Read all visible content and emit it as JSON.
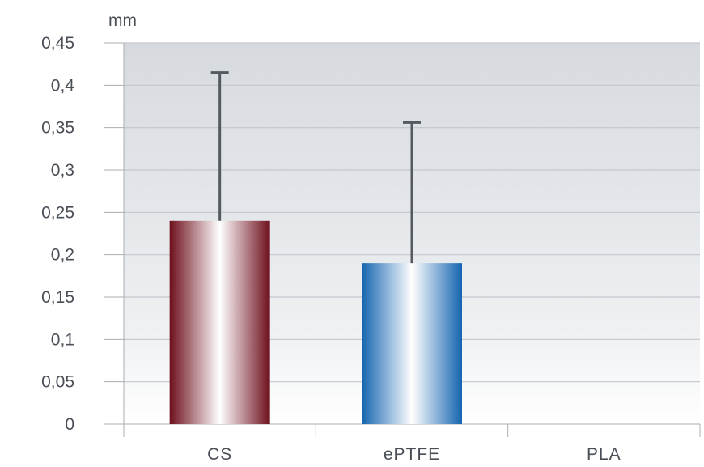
{
  "chart_data": {
    "type": "bar",
    "unit": "mm",
    "categories": [
      "CS",
      "ePTFE",
      "PLA"
    ],
    "values": [
      0.24,
      0.19,
      0
    ],
    "error_upper": [
      0.415,
      0.356,
      null
    ],
    "ylim": [
      0,
      0.45
    ],
    "yticks": [
      0,
      0.05,
      0.1,
      0.15,
      0.2,
      0.25,
      0.3,
      0.35,
      0.4,
      0.45
    ],
    "ytick_labels": [
      "0",
      "0,05",
      "0,1",
      "0,15",
      "0,2",
      "0,25",
      "0,3",
      "0,35",
      "0,4",
      "0,45"
    ],
    "grid": true,
    "legend": "none",
    "bar_colors": [
      "#7a1a24",
      "#1f78c0",
      "#888888"
    ],
    "title": "",
    "xlabel": "",
    "ylabel": "mm"
  }
}
